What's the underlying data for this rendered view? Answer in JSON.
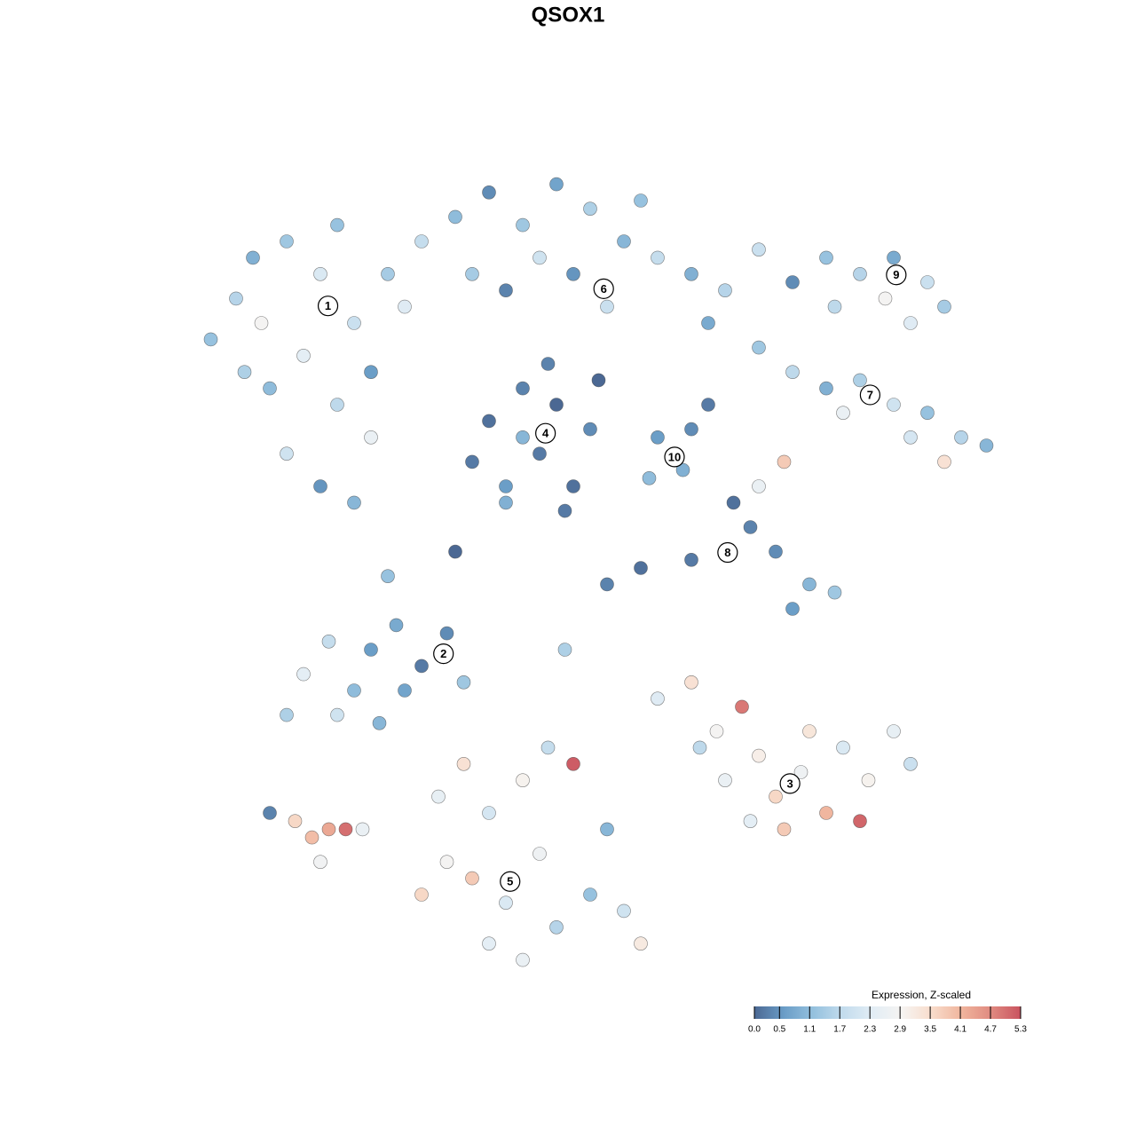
{
  "chart_data": {
    "type": "scatter",
    "title": "QSOX1",
    "xlim": [
      0,
      100
    ],
    "ylim": [
      0,
      100
    ],
    "x": [
      5,
      8,
      10,
      14,
      18,
      22,
      16,
      12,
      20,
      24,
      26,
      30,
      14,
      18,
      22,
      28,
      9,
      20,
      24,
      11,
      34,
      38,
      42,
      46,
      50,
      54,
      58,
      62,
      66,
      44,
      48,
      36,
      56,
      64,
      40,
      52,
      38,
      42,
      46,
      50,
      44,
      40,
      48,
      36,
      45,
      51,
      42,
      47,
      58,
      61,
      62,
      57,
      64,
      67,
      69,
      66,
      62,
      56,
      52,
      72,
      76,
      79,
      74,
      70,
      73,
      74,
      78,
      82,
      86,
      90,
      92,
      85,
      79,
      88,
      70,
      74,
      78,
      82,
      86,
      90,
      94,
      97,
      88,
      80,
      92,
      16,
      19,
      22,
      24,
      27,
      30,
      33,
      35,
      25,
      20,
      14,
      28,
      58,
      62,
      65,
      68,
      70,
      72,
      75,
      78,
      80,
      83,
      86,
      76,
      73,
      66,
      82,
      88,
      63,
      69,
      32,
      35,
      38,
      42,
      45,
      48,
      44,
      40,
      36,
      33,
      38,
      46,
      50,
      54,
      52,
      30,
      42,
      56,
      12,
      15,
      17,
      19,
      21,
      18,
      23,
      70,
      40,
      34,
      26,
      47
    ],
    "y": [
      78,
      83,
      88,
      90,
      86,
      80,
      76,
      72,
      70,
      74,
      86,
      90,
      64,
      60,
      58,
      82,
      74,
      92,
      66,
      80,
      93,
      96,
      92,
      97,
      94,
      90,
      88,
      86,
      84,
      88,
      86,
      86,
      95,
      80,
      84,
      82,
      68,
      72,
      70,
      67,
      64,
      60,
      60,
      63,
      75,
      73,
      66,
      57,
      66,
      62,
      67,
      61,
      70,
      58,
      55,
      52,
      51,
      50,
      48,
      52,
      48,
      47,
      45,
      60,
      63,
      85,
      88,
      86,
      88,
      85,
      82,
      83,
      82,
      80,
      77,
      74,
      72,
      73,
      70,
      69,
      66,
      65,
      66,
      69,
      63,
      37,
      41,
      35,
      40,
      43,
      38,
      42,
      36,
      31,
      32,
      32,
      35,
      34,
      36,
      30,
      33,
      27,
      22,
      25,
      20,
      28,
      24,
      30,
      30,
      18,
      24,
      19,
      26,
      28,
      19,
      22,
      26,
      20,
      24,
      28,
      26,
      15,
      9,
      12,
      14,
      4,
      6,
      10,
      8,
      18,
      10,
      2,
      4,
      20,
      19,
      17,
      18,
      18,
      14,
      18,
      89,
      58,
      52,
      49,
      40
    ],
    "values": [
      1.2,
      1.6,
      0.9,
      1.3,
      2.2,
      1.9,
      2.4,
      1.1,
      1.7,
      0.6,
      1.4,
      1.8,
      2.0,
      0.5,
      1.0,
      2.3,
      1.5,
      1.2,
      2.6,
      2.9,
      1.1,
      0.4,
      1.3,
      0.7,
      1.5,
      1.0,
      1.8,
      0.9,
      1.6,
      2.0,
      0.5,
      1.4,
      1.2,
      0.8,
      0.3,
      1.9,
      0.1,
      0.3,
      0.0,
      0.4,
      0.2,
      0.6,
      0.1,
      0.2,
      0.3,
      0.0,
      1.0,
      0.2,
      0.6,
      0.9,
      0.4,
      1.1,
      0.2,
      0.1,
      0.3,
      0.0,
      0.2,
      0.1,
      0.3,
      0.4,
      1.0,
      1.3,
      0.6,
      2.6,
      3.8,
      0.4,
      1.2,
      1.6,
      0.8,
      1.9,
      1.4,
      2.9,
      1.7,
      2.3,
      1.3,
      1.7,
      0.9,
      1.5,
      2.0,
      1.2,
      1.6,
      1.0,
      2.1,
      2.6,
      3.4,
      2.4,
      1.8,
      1.1,
      0.6,
      0.8,
      0.2,
      0.4,
      1.3,
      1.0,
      2.0,
      1.5,
      0.7,
      2.3,
      3.4,
      2.9,
      4.9,
      3.1,
      3.6,
      2.7,
      4.1,
      2.2,
      3.0,
      2.5,
      3.3,
      3.8,
      2.6,
      5.1,
      1.9,
      1.7,
      2.4,
      2.5,
      3.4,
      2.1,
      3.0,
      1.8,
      5.2,
      2.7,
      2.2,
      3.8,
      2.9,
      2.4,
      1.6,
      1.2,
      2.0,
      1.0,
      3.6,
      2.6,
      3.2,
      0.3,
      3.6,
      4.0,
      4.3,
      5.0,
      2.8,
      2.6,
      1.9,
      0.9,
      0.0,
      1.2,
      1.5
    ],
    "annotations": [
      {
        "text": "1",
        "x": 18.9,
        "y": 82.1
      },
      {
        "text": "2",
        "x": 32.6,
        "y": 39.5
      },
      {
        "text": "3",
        "x": 73.7,
        "y": 23.6
      },
      {
        "text": "4",
        "x": 44.7,
        "y": 66.5
      },
      {
        "text": "5",
        "x": 40.5,
        "y": 11.6
      },
      {
        "text": "6",
        "x": 51.6,
        "y": 84.2
      },
      {
        "text": "7",
        "x": 83.2,
        "y": 71.2
      },
      {
        "text": "8",
        "x": 66.3,
        "y": 51.9
      },
      {
        "text": "9",
        "x": 86.3,
        "y": 85.9
      },
      {
        "text": "10",
        "x": 60,
        "y": 63.6
      }
    ],
    "colorbar": {
      "title": "Expression, Z-scaled",
      "clim": [
        0,
        5.3
      ],
      "colormap": [
        "#4b6893",
        "#6a9dc7",
        "#95c1de",
        "#c3dced",
        "#e2edf5",
        "#f6f4f2",
        "#f8dccb",
        "#f0b59d",
        "#e08a80",
        "#c9535f"
      ],
      "ticks": [
        {
          "value": 0,
          "label": "0.0"
        },
        0.5,
        1.1,
        1.7,
        2.3,
        2.9,
        3.5,
        4.1,
        4.7,
        5.3
      ]
    }
  }
}
